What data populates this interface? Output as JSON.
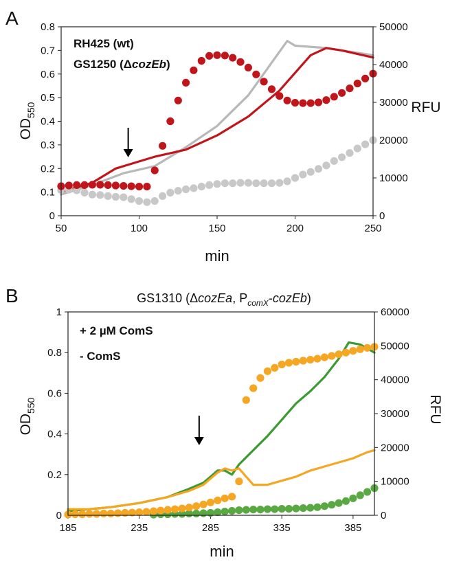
{
  "chart_data": [
    {
      "panel_label": "A",
      "type": "line",
      "title": "",
      "xlabel": "min",
      "ylabel": {
        "main": "OD",
        "sub": "550"
      },
      "y2label": "RFU",
      "xlim": [
        50,
        250
      ],
      "ylim": [
        0,
        0.8
      ],
      "y2lim": [
        0,
        50000
      ],
      "xticks": [
        "50",
        "100",
        "150",
        "200",
        "250"
      ],
      "yticks": [
        "0",
        "0.1",
        "0.2",
        "0.3",
        "0.4",
        "0.5",
        "0.6",
        "0.7",
        "0.8"
      ],
      "y2ticks": [
        "0",
        "10000",
        "20000",
        "30000",
        "40000",
        "50000"
      ],
      "grid": false,
      "legend_position": "top-left",
      "annotation": {
        "type": "arrow",
        "x": 93
      },
      "series": [
        {
          "name": "RH425 (wt)",
          "legend": {
            "prefix": "RH425 (wt)",
            "italic": "",
            "suffix": ""
          },
          "kind": "line",
          "axis": "left",
          "color": "#b8b8b8",
          "x": [
            50,
            70,
            90,
            110,
            130,
            150,
            170,
            195,
            200,
            220,
            250
          ],
          "y": [
            0.09,
            0.13,
            0.18,
            0.21,
            0.29,
            0.38,
            0.51,
            0.74,
            0.72,
            0.71,
            0.68
          ]
        },
        {
          "name": "GS1250 (ΔcozEb)",
          "legend": {
            "prefix": "GS1250 (Δ",
            "italic": "cozEb",
            "suffix": ")"
          },
          "kind": "line",
          "axis": "left",
          "color": "#c0161b",
          "x": [
            50,
            70,
            85,
            95,
            110,
            130,
            150,
            170,
            190,
            210,
            220,
            230,
            250
          ],
          "y": [
            0.1,
            0.14,
            0.2,
            0.22,
            0.25,
            0.28,
            0.34,
            0.42,
            0.53,
            0.68,
            0.71,
            0.7,
            0.67
          ]
        },
        {
          "name": "RH425 (wt) RFU",
          "kind": "scatter",
          "axis": "right",
          "color": "#c8c8c8",
          "x": [
            50,
            55,
            60,
            65,
            70,
            75,
            80,
            85,
            90,
            95,
            100,
            105,
            110,
            115,
            120,
            125,
            130,
            135,
            140,
            145,
            150,
            155,
            160,
            165,
            170,
            175,
            180,
            185,
            190,
            195,
            200,
            205,
            210,
            215,
            220,
            225,
            230,
            235,
            240,
            245,
            250
          ],
          "y": [
            6800,
            6900,
            6700,
            6100,
            5600,
            5500,
            5200,
            5000,
            4900,
            4400,
            3900,
            3600,
            3900,
            5200,
            6100,
            6600,
            7000,
            7300,
            7700,
            8100,
            8400,
            8600,
            8600,
            8700,
            8700,
            8600,
            8600,
            8600,
            8700,
            9100,
            10000,
            10900,
            11600,
            12400,
            13300,
            14500,
            15500,
            16600,
            17800,
            18900,
            20000
          ]
        },
        {
          "name": "GS1250 (ΔcozEb) RFU",
          "kind": "scatter",
          "axis": "right",
          "color": "#c0161b",
          "x": [
            50,
            55,
            60,
            65,
            70,
            75,
            80,
            85,
            90,
            95,
            100,
            105,
            110,
            115,
            120,
            125,
            130,
            135,
            140,
            145,
            150,
            155,
            160,
            165,
            170,
            175,
            180,
            185,
            190,
            195,
            200,
            205,
            210,
            215,
            220,
            225,
            230,
            235,
            240,
            245,
            250
          ],
          "y": [
            7800,
            8000,
            8100,
            8100,
            8200,
            8200,
            8100,
            8000,
            7900,
            7800,
            7700,
            7700,
            12000,
            18500,
            25000,
            30500,
            35200,
            38500,
            41000,
            42300,
            42500,
            42400,
            41800,
            40700,
            39200,
            37400,
            35500,
            33500,
            31700,
            30500,
            29900,
            29800,
            29800,
            30000,
            30600,
            31500,
            32500,
            33700,
            35000,
            36300,
            37600
          ]
        }
      ]
    },
    {
      "panel_label": "B",
      "type": "line",
      "title": {
        "prefix": "GS1310 (Δ",
        "italic": "cozEa",
        "middle": ", P",
        "sub": "comX",
        "dash": "-",
        "italic2": "cozEb",
        "suffix": ")"
      },
      "xlabel": "min",
      "ylabel": {
        "main": "OD",
        "sub": "550"
      },
      "y2label": "RFU",
      "xlim": [
        185,
        400
      ],
      "ylim": [
        0,
        1
      ],
      "y2lim": [
        0,
        60000
      ],
      "xticks": [
        "185",
        "235",
        "285",
        "335",
        "385"
      ],
      "yticks": [
        "0",
        "0.2",
        "0.4",
        "0.6",
        "0.8",
        "1"
      ],
      "y2ticks": [
        "0",
        "10000",
        "20000",
        "30000",
        "40000",
        "50000",
        "60000"
      ],
      "grid": false,
      "legend_position": "top-left",
      "annotation": {
        "type": "arrow",
        "x": 277
      },
      "series": [
        {
          "name": "+ 2 µM ComS",
          "legend": {
            "prefix": "+ 2 µM ComS",
            "italic": "",
            "suffix": ""
          },
          "kind": "line",
          "axis": "left",
          "color": "#3c9a32",
          "x": [
            185,
            200,
            215,
            235,
            255,
            270,
            280,
            285,
            290,
            295,
            300,
            305,
            315,
            325,
            335,
            345,
            355,
            365,
            375,
            382,
            390,
            400
          ],
          "y": [
            0.02,
            0.03,
            0.04,
            0.06,
            0.09,
            0.13,
            0.16,
            0.19,
            0.22,
            0.22,
            0.2,
            0.25,
            0.32,
            0.39,
            0.47,
            0.55,
            0.61,
            0.68,
            0.77,
            0.85,
            0.84,
            0.8
          ]
        },
        {
          "name": "- ComS",
          "legend": {
            "prefix": "- ComS",
            "italic": "",
            "suffix": ""
          },
          "kind": "line",
          "axis": "left",
          "color": "#f5a623",
          "x": [
            185,
            200,
            215,
            235,
            255,
            270,
            280,
            285,
            290,
            295,
            300,
            305,
            310,
            315,
            325,
            335,
            345,
            355,
            365,
            375,
            385,
            395,
            400
          ],
          "y": [
            0.03,
            0.03,
            0.04,
            0.06,
            0.09,
            0.12,
            0.15,
            0.18,
            0.21,
            0.23,
            0.22,
            0.23,
            0.19,
            0.15,
            0.15,
            0.17,
            0.19,
            0.22,
            0.24,
            0.26,
            0.28,
            0.31,
            0.32
          ]
        },
        {
          "name": "+ 2 µM ComS RFU",
          "kind": "scatter",
          "axis": "right",
          "color": "#5aa843",
          "x": [
            245,
            250,
            255,
            260,
            265,
            270,
            275,
            280,
            285,
            290,
            295,
            300,
            305,
            310,
            315,
            320,
            325,
            330,
            335,
            340,
            345,
            350,
            355,
            360,
            365,
            370,
            375,
            380,
            385,
            390,
            395,
            400
          ],
          "y": [
            200,
            300,
            300,
            400,
            400,
            500,
            500,
            600,
            700,
            900,
            1100,
            1300,
            1500,
            1600,
            1700,
            1700,
            1800,
            1800,
            1900,
            1900,
            2000,
            2100,
            2200,
            2400,
            2700,
            3100,
            3600,
            4200,
            5000,
            5900,
            6900,
            8000
          ]
        },
        {
          "name": "- ComS RFU",
          "kind": "scatter",
          "axis": "right",
          "color": "#f5a623",
          "x": [
            185,
            190,
            195,
            200,
            205,
            210,
            215,
            220,
            225,
            230,
            235,
            240,
            245,
            250,
            255,
            260,
            265,
            270,
            275,
            280,
            285,
            290,
            295,
            300,
            305,
            310,
            315,
            320,
            325,
            330,
            335,
            340,
            345,
            350,
            355,
            360,
            365,
            370,
            375,
            380,
            385,
            390,
            395,
            400
          ],
          "y": [
            200,
            300,
            300,
            400,
            400,
            500,
            500,
            600,
            700,
            800,
            900,
            1000,
            1200,
            1400,
            1600,
            1800,
            2000,
            2300,
            2700,
            3200,
            3800,
            4400,
            5000,
            5500,
            10000,
            34000,
            37500,
            40500,
            42500,
            43500,
            44500,
            45000,
            45300,
            45600,
            45900,
            46200,
            46600,
            47000,
            47500,
            48000,
            48500,
            49000,
            49400,
            49700
          ]
        }
      ]
    }
  ]
}
